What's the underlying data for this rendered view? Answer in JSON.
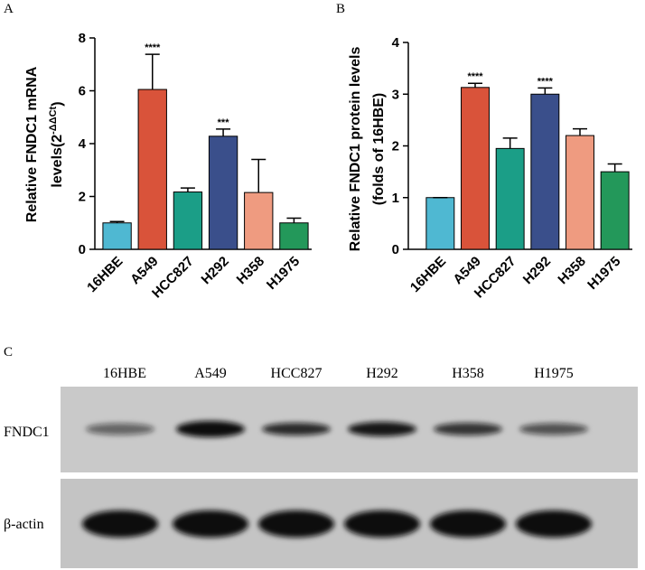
{
  "chart_data": [
    {
      "type": "bar",
      "panel": "A",
      "ylabel": [
        "Relative FNDC1 mRNA",
        "levels(2",
        "-ΔΔCt",
        ")"
      ],
      "categories": [
        "16HBE",
        "A549",
        "HCC827",
        "H292",
        "H358",
        "H1975"
      ],
      "values": [
        1.0,
        6.05,
        2.17,
        4.28,
        2.15,
        1.0
      ],
      "errors": [
        0.05,
        1.33,
        0.15,
        0.27,
        1.25,
        0.18
      ],
      "colors": [
        "#4fb8d2",
        "#d9533a",
        "#1b9e87",
        "#3a4f8b",
        "#ef9b80",
        "#23985a"
      ],
      "significance": [
        null,
        "****",
        null,
        "***",
        null,
        null
      ],
      "ylim": [
        0,
        8
      ],
      "yticks": [
        0,
        2,
        4,
        6,
        8
      ]
    },
    {
      "type": "bar",
      "panel": "B",
      "ylabel": [
        "Relative FNDC1 protein levels",
        "(folds of 16HBE)"
      ],
      "categories": [
        "16HBE",
        "A549",
        "HCC827",
        "H292",
        "H358",
        "H1975"
      ],
      "values": [
        1.0,
        3.13,
        1.95,
        3.0,
        2.2,
        1.5
      ],
      "errors": [
        0,
        0.08,
        0.2,
        0.12,
        0.13,
        0.15
      ],
      "colors": [
        "#4fb8d2",
        "#d9533a",
        "#1b9e87",
        "#3a4f8b",
        "#ef9b80",
        "#23985a"
      ],
      "significance": [
        null,
        "****",
        null,
        "****",
        null,
        null
      ],
      "ylim": [
        0,
        4
      ],
      "yticks": [
        0,
        1,
        2,
        3,
        4
      ]
    }
  ],
  "blot": {
    "panel": "C",
    "lanes": [
      "16HBE",
      "A549",
      "HCC827",
      "H292",
      "H358",
      "H1975"
    ],
    "rows": [
      "FNDC1",
      "β-actin"
    ]
  }
}
